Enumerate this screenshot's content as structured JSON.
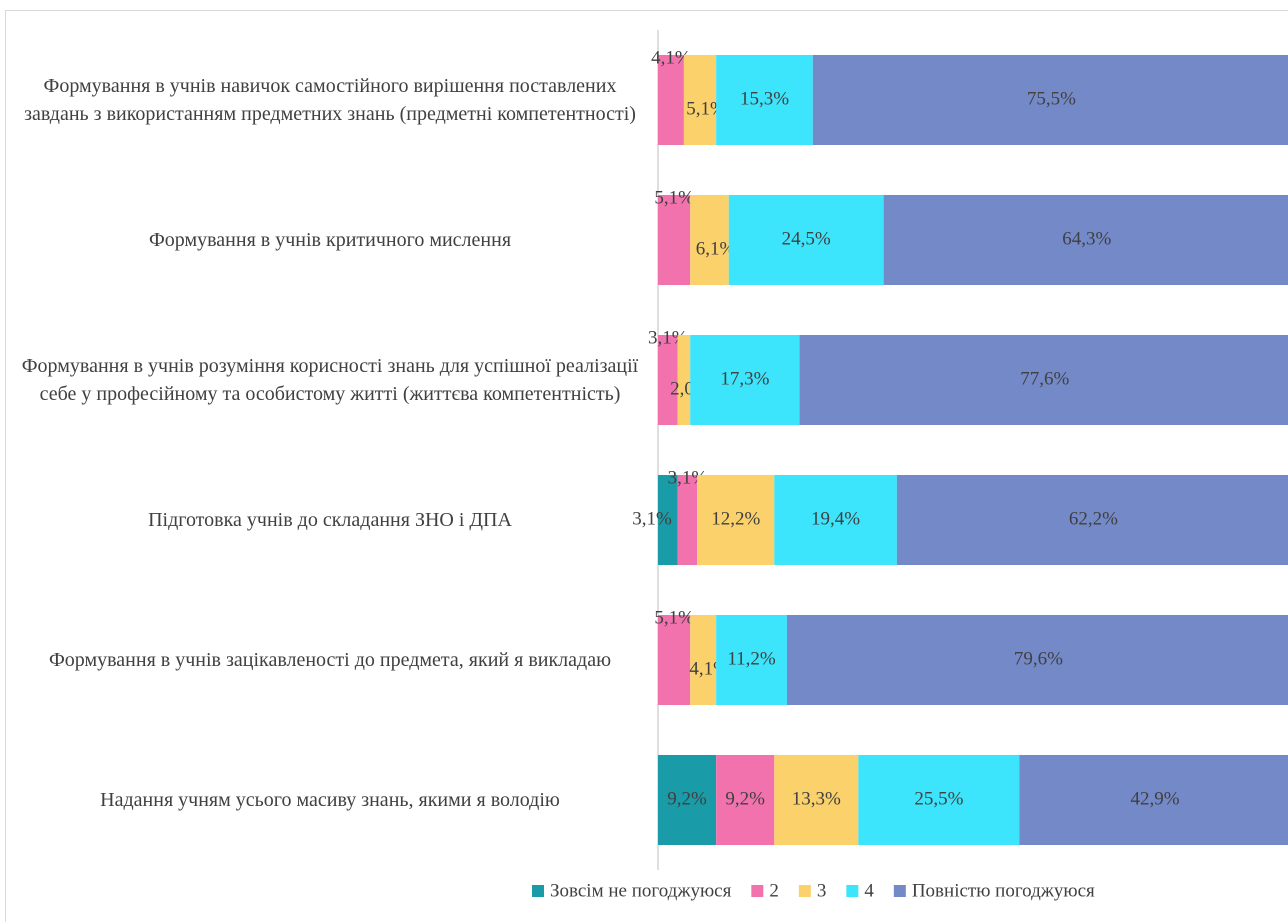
{
  "chart_data": {
    "type": "stacked-barh",
    "categories": [
      "Формування в учнів навичок самостійного вирішення поставлених завдань з використанням предметних знань (предметні компетентності)",
      "Формування в учнів критичного мислення",
      "Формування в учнів розуміння корисності знань для успішної реалізації себе у професійному та особистому житті (життєва компетентність)",
      "Підготовка учнів до складання ЗНО і ДПА",
      "Формування в учнів зацікавленості до предмета, який я викладаю",
      "Надання учням усього масиву знань, якими я володію"
    ],
    "series": [
      {
        "name": "Зовсім не погоджуюся",
        "color": "#1a9ba8",
        "values": [
          0,
          0,
          0,
          3.1,
          0,
          9.2
        ],
        "value_labels": [
          null,
          null,
          null,
          "3,1%",
          null,
          "9,2%"
        ]
      },
      {
        "name": "2",
        "color": "#f272ae",
        "values": [
          4.1,
          5.1,
          3.1,
          3.1,
          5.1,
          9.2
        ],
        "value_labels": [
          "4,1%",
          "5,1%",
          "3,1%",
          "3,1%",
          "5,1%",
          "9,2%"
        ]
      },
      {
        "name": "3",
        "color": "#fbd16c",
        "values": [
          5.1,
          6.1,
          2.0,
          12.2,
          4.1,
          13.3
        ],
        "value_labels": [
          "5,1%",
          "6,1%",
          "2,0%",
          "12,2%",
          "4,1%",
          "13,3%"
        ]
      },
      {
        "name": "4",
        "color": "#3ce4fc",
        "values": [
          15.3,
          24.5,
          17.3,
          19.4,
          11.2,
          25.5
        ],
        "value_labels": [
          "15,3%",
          "24,5%",
          "17,3%",
          "19,4%",
          "11,2%",
          "25,5%"
        ]
      },
      {
        "name": "Повністю погоджуюся",
        "color": "#7489c8",
        "values": [
          75.5,
          64.3,
          77.6,
          62.2,
          79.6,
          42.9
        ],
        "value_labels": [
          "75,5%",
          "64,3%",
          "77,6%",
          "62,2%",
          "79,6%",
          "42,9%"
        ]
      }
    ],
    "xlim": [
      0,
      100
    ],
    "legend": "bottom"
  }
}
